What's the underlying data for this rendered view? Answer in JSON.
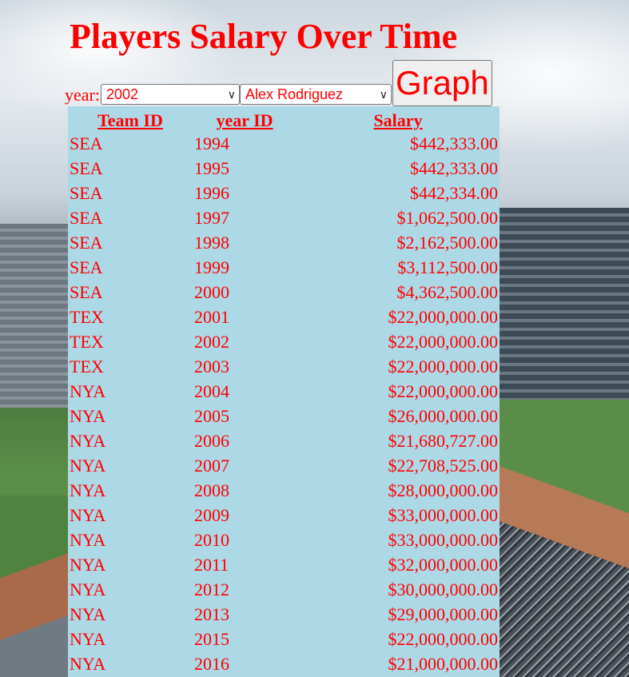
{
  "page": {
    "title": "Players Salary Over Time"
  },
  "controls": {
    "year_label": "year:",
    "year_value": "2002",
    "player_value": "Alex Rodriguez",
    "graph_button": "Graph"
  },
  "table": {
    "headers": [
      "Team ID",
      "year ID",
      "Salary"
    ],
    "rows": [
      [
        "SEA",
        "1994",
        "$442,333.00"
      ],
      [
        "SEA",
        "1995",
        "$442,333.00"
      ],
      [
        "SEA",
        "1996",
        "$442,334.00"
      ],
      [
        "SEA",
        "1997",
        "$1,062,500.00"
      ],
      [
        "SEA",
        "1998",
        "$2,162,500.00"
      ],
      [
        "SEA",
        "1999",
        "$3,112,500.00"
      ],
      [
        "SEA",
        "2000",
        "$4,362,500.00"
      ],
      [
        "TEX",
        "2001",
        "$22,000,000.00"
      ],
      [
        "TEX",
        "2002",
        "$22,000,000.00"
      ],
      [
        "TEX",
        "2003",
        "$22,000,000.00"
      ],
      [
        "NYA",
        "2004",
        "$22,000,000.00"
      ],
      [
        "NYA",
        "2005",
        "$26,000,000.00"
      ],
      [
        "NYA",
        "2006",
        "$21,680,727.00"
      ],
      [
        "NYA",
        "2007",
        "$22,708,525.00"
      ],
      [
        "NYA",
        "2008",
        "$28,000,000.00"
      ],
      [
        "NYA",
        "2009",
        "$33,000,000.00"
      ],
      [
        "NYA",
        "2010",
        "$33,000,000.00"
      ],
      [
        "NYA",
        "2011",
        "$32,000,000.00"
      ],
      [
        "NYA",
        "2012",
        "$30,000,000.00"
      ],
      [
        "NYA",
        "2013",
        "$29,000,000.00"
      ],
      [
        "NYA",
        "2015",
        "$22,000,000.00"
      ],
      [
        "NYA",
        "2016",
        "$21,000,000.00"
      ]
    ]
  },
  "colors": {
    "text": "#ff0000",
    "table_background": "#add8e6"
  },
  "icons": {
    "dropdown": "chevron-down-icon"
  }
}
